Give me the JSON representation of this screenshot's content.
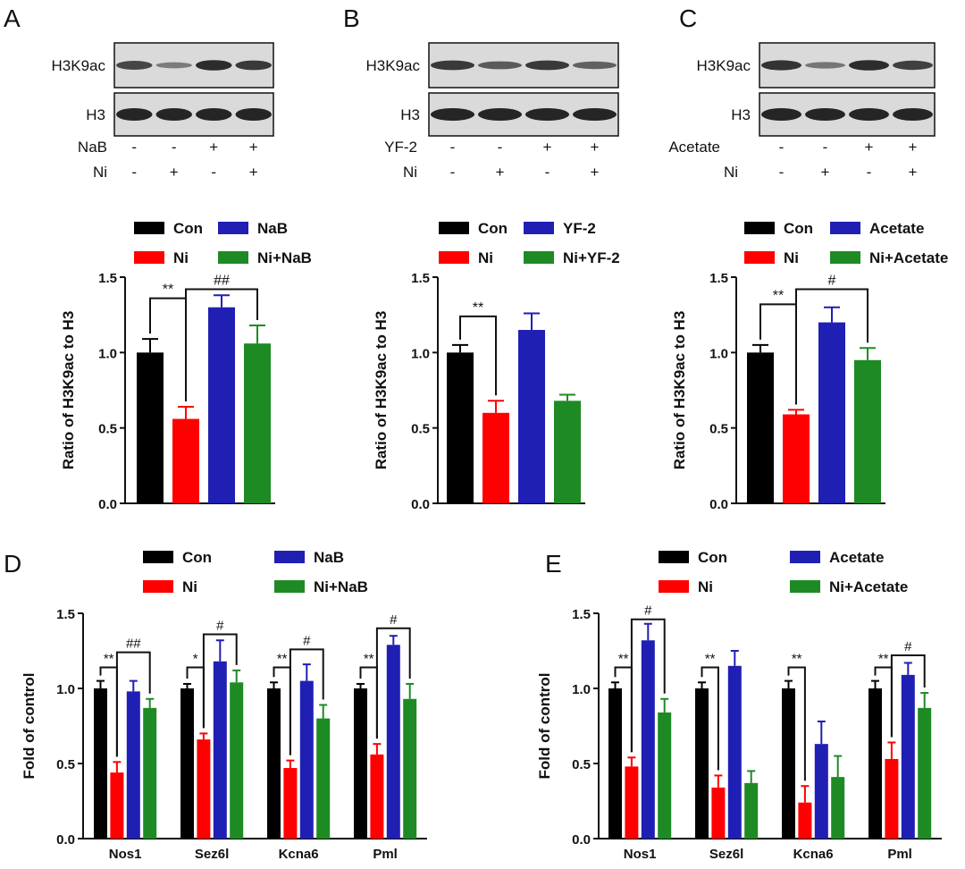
{
  "colors": {
    "Con": "#000000",
    "Ni": "#ff0000",
    "treat": "#1f1fb4",
    "combo": "#1e8a24",
    "blot_bg": "#dadada",
    "band": "#1b1b1b"
  },
  "blots": [
    {
      "letter": "A",
      "labels": [
        "H3K9ac",
        "H3"
      ],
      "treat_name": "NaB",
      "treat_row": [
        "-",
        "-",
        "+",
        "+"
      ],
      "ni_name": "Ni",
      "ni_row": [
        "-",
        "+",
        "-",
        "+"
      ],
      "band_strength": [
        0.75,
        0.35,
        0.95,
        0.85
      ]
    },
    {
      "letter": "B",
      "labels": [
        "H3K9ac",
        "H3"
      ],
      "treat_name": "YF-2",
      "treat_row": [
        "-",
        "-",
        "+",
        "+"
      ],
      "ni_name": "Ni",
      "ni_row": [
        "-",
        "+",
        "-",
        "+"
      ],
      "band_strength": [
        0.85,
        0.6,
        0.85,
        0.55
      ]
    },
    {
      "letter": "C",
      "labels": [
        "H3K9ac",
        "H3"
      ],
      "treat_name": "Acetate",
      "treat_row": [
        "-",
        "-",
        "+",
        "+"
      ],
      "ni_name": "Ni",
      "ni_row": [
        "-",
        "+",
        "-",
        "+"
      ],
      "band_strength": [
        0.9,
        0.4,
        0.95,
        0.8
      ]
    }
  ],
  "chart_data": [
    {
      "type": "bar",
      "letter": "",
      "ylabel": "Ratio of H3K9ac to H3",
      "ylim": [
        0,
        1.5
      ],
      "yticks": [
        "0.0",
        "0.5",
        "1.0",
        "1.5"
      ],
      "legend": [
        "Con",
        "NaB",
        "Ni",
        "Ni+NaB"
      ],
      "series": [
        {
          "name": "Con",
          "value": 1.0,
          "err": 0.09
        },
        {
          "name": "Ni",
          "value": 0.56,
          "err": 0.08
        },
        {
          "name": "NaB",
          "value": 1.3,
          "err": 0.08
        },
        {
          "name": "Ni+NaB",
          "value": 1.06,
          "err": 0.12
        }
      ],
      "annotations": [
        {
          "text": "**",
          "from": "Con",
          "to": "Ni",
          "level": 1.36
        },
        {
          "text": "##",
          "from": "Ni",
          "to": "Ni+NaB",
          "level": 1.42
        }
      ]
    },
    {
      "type": "bar",
      "letter": "",
      "ylabel": "Ratio of H3K9ac to H3",
      "ylim": [
        0,
        1.5
      ],
      "yticks": [
        "0.0",
        "0.5",
        "1.0",
        "1.5"
      ],
      "legend": [
        "Con",
        "YF-2",
        "Ni",
        "Ni+YF-2"
      ],
      "series": [
        {
          "name": "Con",
          "value": 1.0,
          "err": 0.05
        },
        {
          "name": "Ni",
          "value": 0.6,
          "err": 0.08
        },
        {
          "name": "YF-2",
          "value": 1.15,
          "err": 0.11
        },
        {
          "name": "Ni+YF-2",
          "value": 0.68,
          "err": 0.04
        }
      ],
      "annotations": [
        {
          "text": "**",
          "from": "Con",
          "to": "Ni",
          "level": 1.24
        }
      ]
    },
    {
      "type": "bar",
      "letter": "",
      "ylabel": "Ratio of H3K9ac to H3",
      "ylim": [
        0,
        1.5
      ],
      "yticks": [
        "0.0",
        "0.5",
        "1.0",
        "1.5"
      ],
      "legend": [
        "Con",
        "Acetate",
        "Ni",
        "Ni+Acetate"
      ],
      "series": [
        {
          "name": "Con",
          "value": 1.0,
          "err": 0.05
        },
        {
          "name": "Ni",
          "value": 0.59,
          "err": 0.03
        },
        {
          "name": "Acetate",
          "value": 1.2,
          "err": 0.1
        },
        {
          "name": "Ni+Acetate",
          "value": 0.95,
          "err": 0.08
        }
      ],
      "annotations": [
        {
          "text": "**",
          "from": "Con",
          "to": "Ni",
          "level": 1.32
        },
        {
          "text": "#",
          "from": "Ni",
          "to": "Ni+Acetate",
          "level": 1.42
        }
      ]
    },
    {
      "type": "bar",
      "letter": "D",
      "ylabel": "Fold of control",
      "ylim": [
        0,
        1.5
      ],
      "yticks": [
        "0.0",
        "0.5",
        "1.0",
        "1.5"
      ],
      "legend": [
        "Con",
        "NaB",
        "Ni",
        "Ni+NaB"
      ],
      "categories": [
        "Nos1",
        "Sez6l",
        "Kcna6",
        "Pml"
      ],
      "series": [
        {
          "name": "Con",
          "values": [
            1.0,
            1.0,
            1.0,
            1.0
          ],
          "err": [
            0.05,
            0.03,
            0.04,
            0.03
          ]
        },
        {
          "name": "Ni",
          "values": [
            0.44,
            0.66,
            0.47,
            0.56
          ],
          "err": [
            0.07,
            0.04,
            0.05,
            0.07
          ]
        },
        {
          "name": "NaB",
          "values": [
            0.98,
            1.18,
            1.05,
            1.29
          ],
          "err": [
            0.07,
            0.14,
            0.11,
            0.06
          ]
        },
        {
          "name": "Ni+NaB",
          "values": [
            0.87,
            1.04,
            0.8,
            0.93
          ],
          "err": [
            0.06,
            0.08,
            0.09,
            0.1
          ]
        }
      ],
      "annotations": [
        {
          "text": "**",
          "category": 0,
          "from": "Con",
          "to": "Ni",
          "level": 1.14
        },
        {
          "text": "##",
          "category": 0,
          "from": "Ni",
          "to": "Ni+NaB",
          "level": 1.24
        },
        {
          "text": "*",
          "category": 1,
          "from": "Con",
          "to": "Ni",
          "level": 1.14
        },
        {
          "text": "#",
          "category": 1,
          "from": "Ni",
          "to": "Ni+NaB",
          "level": 1.36
        },
        {
          "text": "**",
          "category": 2,
          "from": "Con",
          "to": "Ni",
          "level": 1.14
        },
        {
          "text": "#",
          "category": 2,
          "from": "Ni",
          "to": "Ni+NaB",
          "level": 1.26
        },
        {
          "text": "**",
          "category": 3,
          "from": "Con",
          "to": "Ni",
          "level": 1.14
        },
        {
          "text": "#",
          "category": 3,
          "from": "Ni",
          "to": "Ni+NaB",
          "level": 1.4
        }
      ]
    },
    {
      "type": "bar",
      "letter": "E",
      "ylabel": "Fold of control",
      "ylim": [
        0,
        1.5
      ],
      "yticks": [
        "0.0",
        "0.5",
        "1.0",
        "1.5"
      ],
      "legend": [
        "Con",
        "Acetate",
        "Ni",
        "Ni+Acetate"
      ],
      "categories": [
        "Nos1",
        "Sez6l",
        "Kcna6",
        "Pml"
      ],
      "series": [
        {
          "name": "Con",
          "values": [
            1.0,
            1.0,
            1.0,
            1.0
          ],
          "err": [
            0.04,
            0.04,
            0.05,
            0.05
          ]
        },
        {
          "name": "Ni",
          "values": [
            0.48,
            0.34,
            0.24,
            0.53
          ],
          "err": [
            0.06,
            0.08,
            0.11,
            0.11
          ]
        },
        {
          "name": "Acetate",
          "values": [
            1.32,
            1.15,
            0.63,
            1.09
          ],
          "err": [
            0.11,
            0.1,
            0.15,
            0.08
          ]
        },
        {
          "name": "Ni+Acetate",
          "values": [
            0.84,
            0.37,
            0.41,
            0.87
          ],
          "err": [
            0.09,
            0.08,
            0.14,
            0.1
          ]
        }
      ],
      "annotations": [
        {
          "text": "**",
          "category": 0,
          "from": "Con",
          "to": "Ni",
          "level": 1.14
        },
        {
          "text": "#",
          "category": 0,
          "from": "Ni",
          "to": "Ni+Acetate",
          "level": 1.46
        },
        {
          "text": "**",
          "category": 1,
          "from": "Con",
          "to": "Ni",
          "level": 1.14
        },
        {
          "text": "**",
          "category": 2,
          "from": "Con",
          "to": "Ni",
          "level": 1.14
        },
        {
          "text": "**",
          "category": 3,
          "from": "Con",
          "to": "Ni",
          "level": 1.14
        },
        {
          "text": "#",
          "category": 3,
          "from": "Ni",
          "to": "Ni+Acetate",
          "level": 1.22
        }
      ]
    }
  ]
}
